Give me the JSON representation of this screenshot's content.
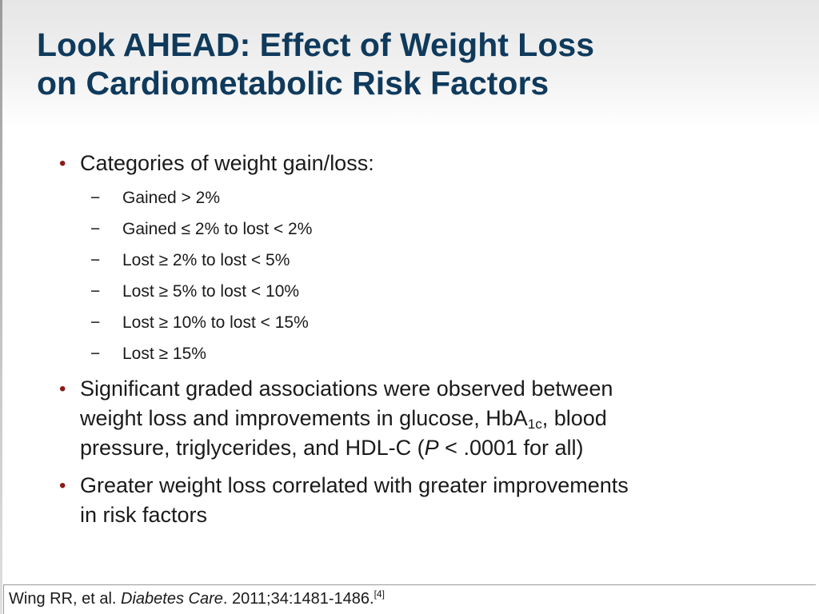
{
  "slide": {
    "title_line1": "Look AHEAD: Effect of Weight Loss",
    "title_line2": "on Cardiometabolic Risk Factors",
    "bullet_marker": "•",
    "sub_marker": "−",
    "colors": {
      "title": "#0f3a5c",
      "bullet": "#8b1a1a",
      "text": "#1a1a1a"
    },
    "bullets": [
      {
        "text": "Categories of weight gain/loss:",
        "subitems": [
          "Gained > 2%",
          "Gained ≤ 2% to lost < 2%",
          "Lost ≥ 2% to lost < 5%",
          "Lost ≥ 5% to lost < 10%",
          "Lost ≥ 10% to lost < 15%",
          "Lost  ≥ 15%"
        ]
      },
      {
        "line1": "Significant graded associations were observed between",
        "line2_a": "weight loss and improvements in glucose, HbA",
        "line2_sub": "1c",
        "line2_b": ", blood",
        "line3_a": "pressure, triglycerides, and HDL-C (",
        "line3_italic": "P",
        "line3_b": " < .0001 for all)"
      },
      {
        "line1": "Greater weight loss correlated with greater improvements",
        "line2": "in risk factors"
      }
    ],
    "citation": {
      "authors": "Wing RR, et al. ",
      "journal": "Diabetes Care",
      "details": ". 2011;34:1481-1486.",
      "ref": "[4]"
    }
  }
}
